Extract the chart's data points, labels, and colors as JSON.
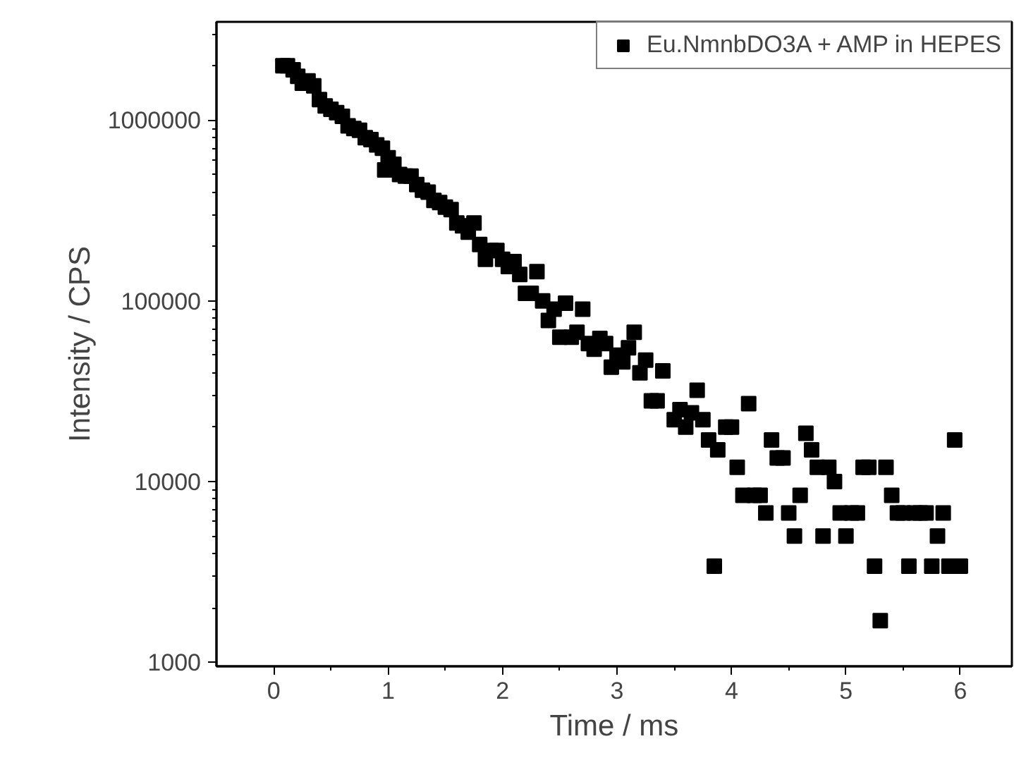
{
  "chart_data": {
    "type": "scatter",
    "xlabel": "Time / ms",
    "ylabel": "Intensity / CPS",
    "log": "y",
    "grid": false,
    "legend": "top right",
    "marker": "square",
    "xlim": [
      -0.5,
      6.45
    ],
    "ylim": [
      950,
      3500000
    ],
    "xticks": [
      0,
      1,
      2,
      3,
      4,
      5,
      6
    ],
    "yticks": [
      1000,
      10000,
      100000,
      1000000
    ],
    "series": [
      {
        "name": "Eu.NmnbDO3A + AMP in HEPES",
        "color": "#000000",
        "x": [
          0.08,
          0.12,
          0.17,
          0.21,
          0.25,
          0.3,
          0.35,
          0.4,
          0.45,
          0.5,
          0.55,
          0.6,
          0.65,
          0.7,
          0.75,
          0.8,
          0.85,
          0.9,
          0.95,
          0.97,
          1.0,
          1.05,
          1.1,
          1.15,
          1.2,
          1.25,
          1.3,
          1.35,
          1.4,
          1.45,
          1.5,
          1.55,
          1.6,
          1.65,
          1.7,
          1.75,
          1.8,
          1.85,
          1.9,
          1.95,
          2.0,
          2.05,
          2.1,
          2.15,
          2.2,
          2.25,
          2.3,
          2.35,
          2.4,
          2.45,
          2.5,
          2.55,
          2.6,
          2.65,
          2.7,
          2.75,
          2.8,
          2.85,
          2.9,
          2.95,
          3.0,
          3.05,
          3.1,
          3.15,
          3.2,
          3.25,
          3.3,
          3.35,
          3.4,
          3.5,
          3.55,
          3.6,
          3.65,
          3.7,
          3.75,
          3.8,
          3.85,
          3.88,
          3.95,
          4.0,
          4.05,
          4.1,
          4.15,
          4.2,
          4.25,
          4.3,
          4.35,
          4.4,
          4.45,
          4.5,
          4.55,
          4.6,
          4.65,
          4.7,
          4.75,
          4.8,
          4.85,
          4.9,
          4.95,
          5.0,
          5.05,
          5.1,
          5.15,
          5.2,
          5.25,
          5.3,
          5.35,
          5.4,
          5.45,
          5.5,
          5.55,
          5.6,
          5.65,
          5.7,
          5.75,
          5.8,
          5.85,
          5.9,
          5.95,
          6.0
        ],
        "values": [
          2000000,
          2000000,
          1900000,
          1750000,
          1600000,
          1650000,
          1550000,
          1300000,
          1200000,
          1150000,
          1100000,
          1050000,
          930000,
          900000,
          880000,
          800000,
          780000,
          730000,
          700000,
          530000,
          620000,
          570000,
          500000,
          490000,
          490000,
          440000,
          410000,
          400000,
          360000,
          350000,
          330000,
          320000,
          270000,
          260000,
          240000,
          270000,
          205000,
          170000,
          190000,
          190000,
          170000,
          155000,
          165000,
          140000,
          110000,
          110000,
          145000,
          100000,
          78000,
          90000,
          63000,
          97000,
          63000,
          67000,
          90000,
          58000,
          54000,
          62000,
          58000,
          43000,
          50000,
          46000,
          55000,
          67000,
          40000,
          47000,
          28000,
          28000,
          41000,
          22000,
          25000,
          20000,
          24000,
          32000,
          22000,
          17000,
          3400,
          15000,
          20000,
          20000,
          12000,
          8400,
          27000,
          8400,
          8400,
          6700,
          17000,
          13500,
          13500,
          6700,
          5000,
          8400,
          18500,
          15000,
          12000,
          5000,
          12000,
          10000,
          6700,
          5000,
          6700,
          6700,
          12000,
          12000,
          3400,
          1700,
          12000,
          8400,
          6700,
          6700,
          3400,
          6700,
          6700,
          6700,
          3400,
          5000,
          6700,
          3400,
          17000,
          3400
        ]
      }
    ]
  }
}
